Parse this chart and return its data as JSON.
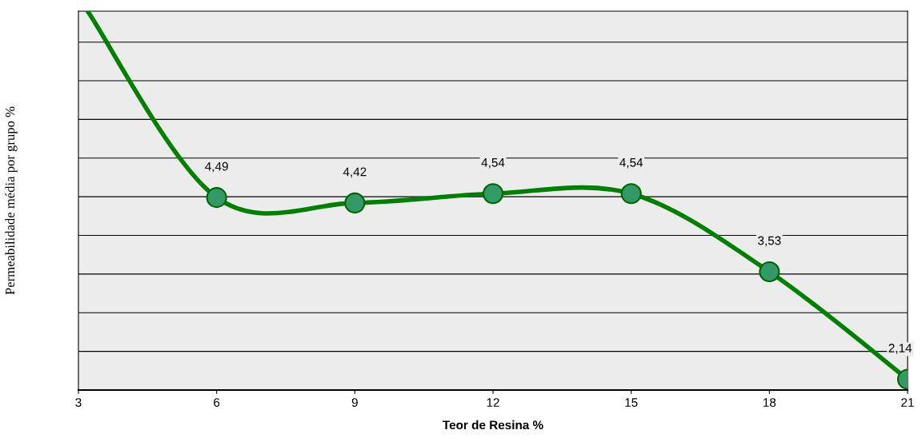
{
  "chart_data": {
    "type": "line",
    "xlabel": "Teor de Resina %",
    "ylabel": "Permeabilidade média por grupo %",
    "xlim": [
      3,
      21
    ],
    "xticks": [
      3,
      6,
      9,
      12,
      15,
      18,
      21
    ],
    "ylim": [
      2,
      6.9
    ],
    "yticks": [
      {
        "value": 2.5,
        "label": null
      },
      {
        "value": 3,
        "label": null
      },
      {
        "value": 3.5,
        "label": null
      },
      {
        "value": 4,
        "label": null
      },
      {
        "value": 4.5,
        "label": null
      },
      {
        "value": 5,
        "label": null
      },
      {
        "value": 5.5,
        "label": null
      },
      {
        "value": 6,
        "label": null
      },
      {
        "value": 6.5,
        "label": null
      }
    ],
    "tick_labels": "x",
    "grid": "y",
    "series": [
      {
        "color": "#008000",
        "marker": "none",
        "x": [
          3.2,
          6,
          9,
          12,
          15,
          18,
          21
        ],
        "values": [
          6.9,
          4.49,
          4.42,
          4.54,
          4.54,
          3.53,
          2.14
        ]
      },
      {
        "type": "scatter",
        "color": "#339966",
        "marker": "circle",
        "x": [
          6,
          9,
          12,
          15,
          18,
          21
        ],
        "values": [
          4.49,
          4.42,
          4.54,
          4.54,
          3.53,
          2.14
        ],
        "value_labels": [
          "4,49",
          "4,42",
          "4,54",
          "4,54",
          "3,53",
          "2,14"
        ]
      }
    ]
  }
}
